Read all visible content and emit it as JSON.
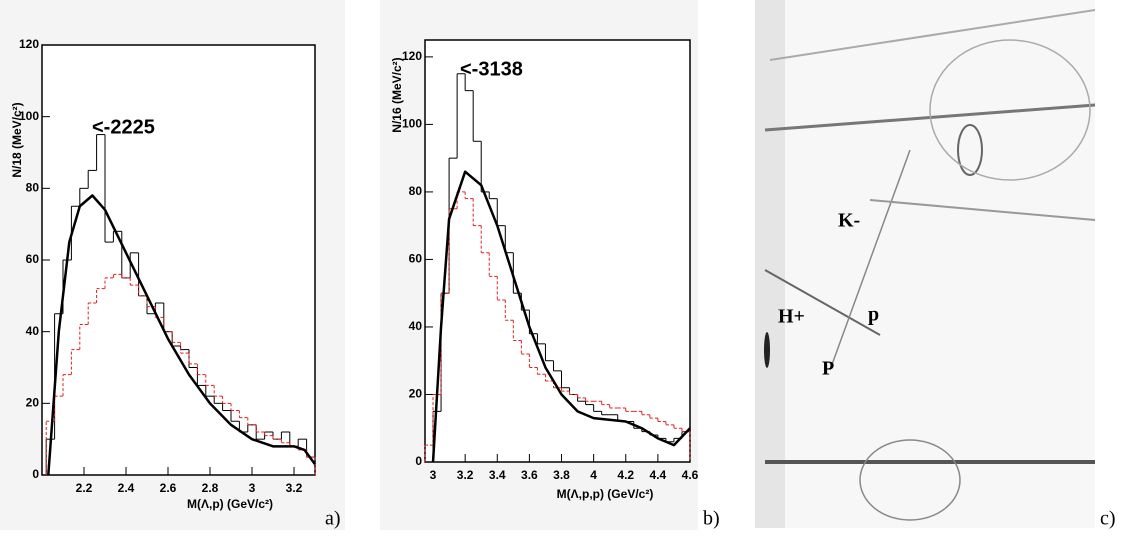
{
  "chart_data": [
    {
      "type": "histogram",
      "annotation": "<-2225",
      "y_label": "N/18 (MeV/c²)",
      "x_label": "M(Λ,p) (GeV/c²)",
      "xlim": [
        2.0,
        3.3
      ],
      "ylim": [
        0,
        120
      ],
      "xticks": [
        2.2,
        2.4,
        2.6,
        2.8,
        3,
        3.2
      ],
      "yticks": [
        0,
        20,
        40,
        60,
        80,
        100,
        120
      ],
      "bins": [
        2.02,
        2.06,
        2.1,
        2.14,
        2.18,
        2.22,
        2.26,
        2.3,
        2.34,
        2.38,
        2.42,
        2.46,
        2.5,
        2.54,
        2.58,
        2.62,
        2.66,
        2.7,
        2.74,
        2.78,
        2.82,
        2.86,
        2.9,
        2.94,
        2.98,
        3.02,
        3.06,
        3.1,
        3.14,
        3.18,
        3.22,
        3.26,
        3.3
      ],
      "series": [
        {
          "color": "#000000",
          "style": "solid",
          "values": [
            10,
            45,
            60,
            75,
            80,
            85,
            95,
            65,
            68,
            55,
            62,
            50,
            45,
            48,
            40,
            36,
            35,
            30,
            25,
            22,
            20,
            18,
            15,
            12,
            14,
            10,
            12,
            10,
            12,
            8,
            10,
            5
          ]
        },
        {
          "color": "#e02020",
          "style": "dashed",
          "values": [
            15,
            22,
            28,
            35,
            42,
            48,
            52,
            55,
            56,
            55,
            53,
            50,
            47,
            44,
            40,
            37,
            34,
            31,
            28,
            25,
            22,
            20,
            18,
            16,
            14,
            12,
            11,
            10,
            9,
            8,
            7,
            5
          ]
        }
      ],
      "fit": {
        "color": "#000000",
        "x": [
          2.03,
          2.08,
          2.13,
          2.18,
          2.24,
          2.3,
          2.4,
          2.5,
          2.6,
          2.7,
          2.8,
          2.9,
          3.0,
          3.1,
          3.2,
          3.25,
          3.3
        ],
        "values": [
          0,
          40,
          65,
          75,
          78,
          74,
          62,
          50,
          38,
          28,
          20,
          14,
          10,
          8,
          8,
          7,
          3
        ]
      }
    },
    {
      "type": "histogram",
      "annotation": "<-3138",
      "y_label": "N/16 (MeV/c²)",
      "x_label": "M(Λ,p,p) (GeV/c²)",
      "xlim": [
        2.95,
        4.6
      ],
      "ylim": [
        0,
        125
      ],
      "xticks": [
        3,
        3.2,
        3.4,
        3.6,
        3.8,
        4,
        4.2,
        4.4,
        4.6
      ],
      "yticks": [
        0,
        20,
        40,
        60,
        80,
        100,
        120
      ],
      "bins": [
        2.95,
        3.0,
        3.05,
        3.1,
        3.15,
        3.2,
        3.25,
        3.3,
        3.35,
        3.4,
        3.45,
        3.5,
        3.55,
        3.6,
        3.65,
        3.7,
        3.75,
        3.8,
        3.85,
        3.9,
        3.95,
        4.0,
        4.05,
        4.1,
        4.15,
        4.2,
        4.25,
        4.3,
        4.35,
        4.4,
        4.45,
        4.5,
        4.55,
        4.6
      ],
      "series": [
        {
          "color": "#000000",
          "style": "solid",
          "values": [
            0,
            15,
            50,
            90,
            115,
            110,
            95,
            80,
            78,
            70,
            62,
            50,
            45,
            38,
            35,
            30,
            27,
            22,
            20,
            18,
            17,
            15,
            14,
            14,
            12,
            12,
            10,
            9,
            8,
            7,
            6,
            7,
            9
          ]
        },
        {
          "color": "#e02020",
          "style": "dashed",
          "values": [
            5,
            20,
            50,
            75,
            80,
            78,
            70,
            62,
            55,
            48,
            42,
            36,
            32,
            28,
            26,
            24,
            22,
            21,
            20,
            19,
            18,
            18,
            17,
            16,
            16,
            15,
            15,
            14,
            13,
            12,
            11,
            10,
            9
          ]
        }
      ],
      "fit": {
        "color": "#000000",
        "x": [
          3.0,
          3.05,
          3.1,
          3.2,
          3.3,
          3.4,
          3.5,
          3.6,
          3.7,
          3.8,
          3.9,
          4.0,
          4.2,
          4.3,
          4.4,
          4.5,
          4.6
        ],
        "values": [
          0,
          40,
          72,
          86,
          82,
          70,
          55,
          40,
          28,
          20,
          15,
          13,
          12,
          10,
          7,
          5,
          10
        ]
      }
    }
  ],
  "panel_labels": [
    "a)",
    "b)",
    "c)"
  ],
  "photo": {
    "labels": [
      "K-",
      "H+",
      "p",
      "P"
    ]
  }
}
